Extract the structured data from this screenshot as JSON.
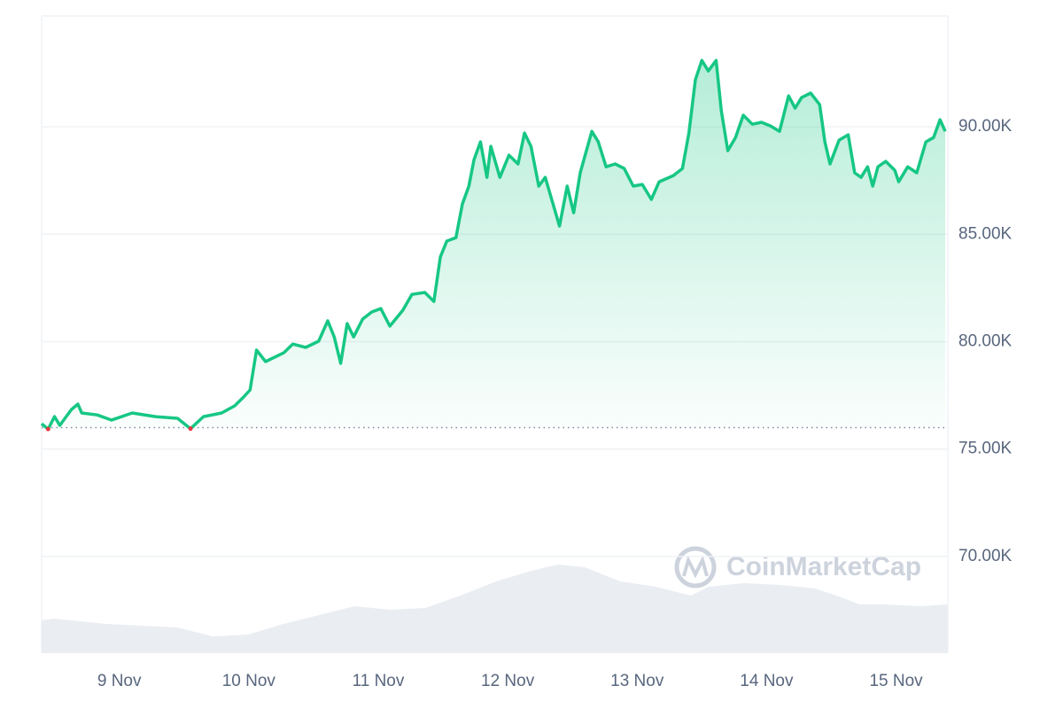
{
  "chart_data": {
    "type": "line",
    "watermark": "CoinMarketCap",
    "x": [
      8.4,
      8.45,
      8.5,
      8.54,
      8.63,
      8.68,
      8.71,
      8.83,
      8.94,
      9.1,
      9.28,
      9.45,
      9.55,
      9.65,
      9.79,
      9.89,
      9.96,
      10.01,
      10.06,
      10.13,
      10.27,
      10.34,
      10.44,
      10.54,
      10.61,
      10.66,
      10.71,
      10.76,
      10.81,
      10.88,
      10.95,
      11.02,
      11.09,
      11.19,
      11.26,
      11.36,
      11.43,
      11.48,
      11.53,
      11.6,
      11.65,
      11.7,
      11.74,
      11.79,
      11.84,
      11.87,
      11.94,
      12.01,
      12.08,
      12.13,
      12.18,
      12.24,
      12.29,
      12.35,
      12.4,
      12.46,
      12.51,
      12.56,
      12.65,
      12.7,
      12.76,
      12.83,
      12.9,
      12.97,
      13.04,
      13.11,
      13.17,
      13.28,
      13.35,
      13.4,
      13.45,
      13.5,
      13.55,
      13.61,
      13.65,
      13.7,
      13.76,
      13.82,
      13.89,
      13.96,
      14.03,
      14.1,
      14.17,
      14.22,
      14.27,
      14.34,
      14.41,
      14.45,
      14.49,
      14.56,
      14.63,
      14.68,
      14.73,
      14.78,
      14.82,
      14.86,
      14.92,
      14.99,
      15.02,
      15.09,
      15.16,
      15.23,
      15.29,
      15.34,
      15.38
    ],
    "values": [
      76180,
      75930,
      76510,
      76100,
      76840,
      77090,
      76680,
      76590,
      76350,
      76680,
      76510,
      76430,
      75950,
      76510,
      76680,
      77010,
      77420,
      77750,
      79610,
      79070,
      79480,
      79890,
      79730,
      80020,
      80970,
      80220,
      78990,
      80840,
      80220,
      81050,
      81380,
      81540,
      80720,
      81460,
      82200,
      82290,
      81870,
      83940,
      84680,
      84840,
      86410,
      87240,
      88470,
      89300,
      87650,
      89090,
      87650,
      88680,
      88270,
      89710,
      89090,
      87240,
      87650,
      86410,
      85380,
      87240,
      86000,
      87860,
      89790,
      89300,
      88140,
      88270,
      88060,
      87240,
      87320,
      86620,
      87440,
      87730,
      88060,
      89710,
      92190,
      93090,
      92600,
      93090,
      90740,
      88890,
      89500,
      90540,
      90120,
      90210,
      90040,
      89790,
      91440,
      90870,
      91360,
      91570,
      91030,
      89300,
      88270,
      89380,
      89630,
      87860,
      87650,
      88140,
      87240,
      88140,
      88390,
      87980,
      87440,
      88140,
      87860,
      89300,
      89500,
      90330,
      89790
    ],
    "baseline": 76000,
    "color": "#16c784",
    "down_color": "#ea3943",
    "xlim": [
      8.4,
      15.4
    ],
    "xticks": [
      {
        "value": 9,
        "label": "9 Nov"
      },
      {
        "value": 10,
        "label": "10 Nov"
      },
      {
        "value": 11,
        "label": "11 Nov"
      },
      {
        "value": 12,
        "label": "12 Nov"
      },
      {
        "value": 13,
        "label": "13 Nov"
      },
      {
        "value": 14,
        "label": "14 Nov"
      },
      {
        "value": 15,
        "label": "15 Nov"
      }
    ],
    "ylim": [
      65500,
      95160
    ],
    "yticks": [
      {
        "value": 70000,
        "label": "70.00K"
      },
      {
        "value": 75000,
        "label": "75.00K"
      },
      {
        "value": 80000,
        "label": "80.00K"
      },
      {
        "value": 85000,
        "label": "85.00K"
      },
      {
        "value": 90000,
        "label": "90.00K"
      }
    ],
    "grid": true
  }
}
